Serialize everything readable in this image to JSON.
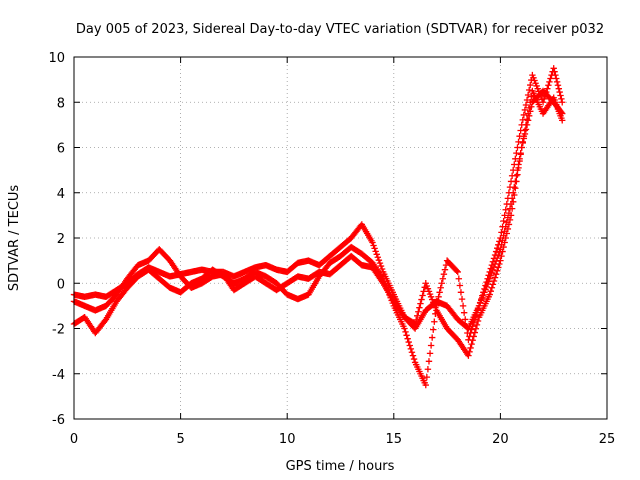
{
  "chart_data": {
    "type": "scatter",
    "title": "Day 005 of 2023, Sidereal Day-to-day VTEC variation (SDTVAR) for receiver p032",
    "xlabel": "GPS time / hours",
    "ylabel": "SDTVAR / TECUs",
    "xlim": [
      0,
      25
    ],
    "ylim": [
      -6,
      10
    ],
    "xticks": [
      "0",
      "5",
      "10",
      "15",
      "20",
      "25"
    ],
    "yticks": [
      "-6",
      "-4",
      "-2",
      "0",
      "2",
      "4",
      "6",
      "8",
      "10"
    ],
    "grid": true,
    "legend": "none",
    "marker": "+",
    "color": "#ff0000",
    "series": [
      {
        "x": [
          0,
          0.5,
          1,
          1.5,
          2,
          2.5,
          3,
          3.5,
          4,
          4.5,
          5,
          5.5,
          6,
          6.5,
          7,
          7.5,
          8,
          8.5,
          9,
          9.5,
          10,
          10.5,
          11,
          11.5,
          12,
          12.5,
          13,
          13.5,
          14,
          14.5,
          15,
          15.5,
          16,
          16.5,
          17,
          17.5,
          18,
          18.5,
          19,
          19.5,
          20,
          20.5,
          21,
          21.5,
          22,
          22.5,
          22.9
        ],
        "y": [
          -0.5,
          -0.6,
          -0.5,
          -0.6,
          -0.3,
          0.0,
          0.4,
          0.7,
          0.5,
          0.3,
          0.4,
          0.5,
          0.6,
          0.5,
          0.5,
          0.3,
          0.5,
          0.7,
          0.8,
          0.6,
          0.5,
          0.9,
          1.0,
          0.8,
          1.2,
          1.6,
          2.0,
          2.6,
          1.8,
          0.5,
          -0.5,
          -1.5,
          -2.0,
          -1.2,
          -0.8,
          -1.0,
          -1.6,
          -2.0,
          -1.0,
          0.2,
          1.5,
          3.5,
          6.0,
          8.0,
          8.5,
          8.0,
          7.5
        ]
      },
      {
        "x": [
          0,
          0.5,
          1,
          1.5,
          2,
          2.5,
          3,
          3.5,
          4,
          4.5,
          5,
          5.5,
          6,
          6.5,
          7,
          7.5,
          8,
          8.5,
          9,
          9.5,
          10,
          10.5,
          11,
          11.5,
          12,
          12.5,
          13,
          13.5,
          14,
          14.5,
          15,
          15.5,
          16,
          16.5,
          17,
          17.5,
          18,
          18.5,
          19,
          19.5,
          20,
          20.5,
          21,
          21.5,
          22,
          22.5,
          22.9
        ],
        "y": [
          -1.8,
          -1.5,
          -2.2,
          -1.6,
          -0.8,
          -0.2,
          0.3,
          0.6,
          0.2,
          -0.2,
          -0.4,
          0.0,
          0.2,
          0.6,
          0.3,
          0.0,
          0.2,
          0.5,
          0.3,
          0.0,
          -0.5,
          -0.7,
          -0.5,
          0.3,
          0.9,
          1.2,
          1.6,
          1.3,
          0.9,
          0.2,
          -1.0,
          -2.0,
          -3.5,
          -4.5,
          -1.0,
          1.0,
          0.5,
          -2.5,
          -1.0,
          0.5,
          2.0,
          4.5,
          7.0,
          9.2,
          8.0,
          9.5,
          8.0
        ]
      },
      {
        "x": [
          0,
          0.5,
          1,
          1.5,
          2,
          2.5,
          3,
          3.5,
          4,
          4.5,
          5,
          5.5,
          6,
          6.5,
          7,
          7.5,
          8,
          8.5,
          9,
          9.5,
          10,
          10.5,
          11,
          11.5,
          12,
          12.5,
          13,
          13.5,
          14,
          14.5,
          15,
          15.5,
          16,
          16.5,
          17,
          17.5,
          18,
          18.5,
          19,
          19.5,
          20,
          20.5,
          21,
          21.5,
          22,
          22.5,
          22.9
        ],
        "y": [
          -0.8,
          -1.0,
          -1.2,
          -1.0,
          -0.5,
          0.2,
          0.8,
          1.0,
          1.5,
          1.0,
          0.3,
          -0.2,
          0.0,
          0.3,
          0.4,
          -0.3,
          0.0,
          0.3,
          0.0,
          -0.3,
          0.0,
          0.3,
          0.2,
          0.5,
          0.4,
          0.8,
          1.2,
          0.8,
          0.7,
          0.0,
          -0.8,
          -1.5,
          -1.8,
          0.0,
          -1.2,
          -2.0,
          -2.5,
          -3.2,
          -1.5,
          -0.5,
          1.0,
          3.0,
          6.0,
          8.5,
          7.5,
          8.2,
          7.2
        ]
      }
    ]
  }
}
